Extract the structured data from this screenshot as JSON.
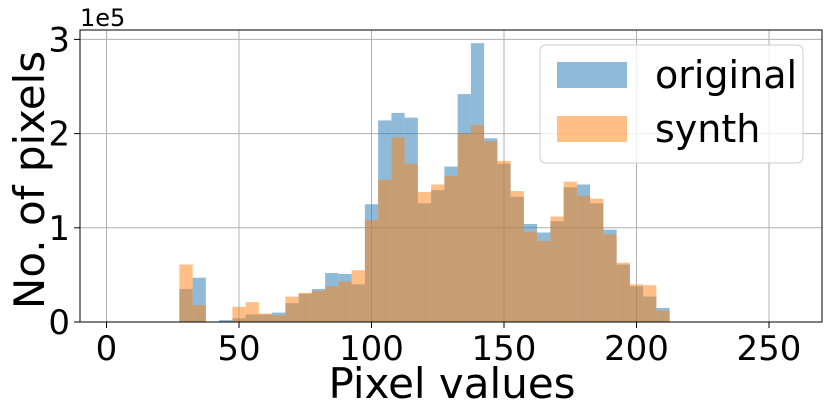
{
  "chart_data": {
    "type": "bar",
    "xlabel": "Pixel values",
    "ylabel": "No. of pixels",
    "y_offset_label": "1e5",
    "xlim": [
      -10,
      270
    ],
    "ylim": [
      0,
      3.1
    ],
    "y_unit_multiplier": 100000,
    "x_ticks": [
      0,
      50,
      100,
      150,
      200,
      250
    ],
    "y_ticks": [
      0,
      1,
      2,
      3
    ],
    "grid": true,
    "legend_position": "top-right",
    "bin_edges": [
      27.5,
      32.5,
      37.5,
      42.5,
      47.5,
      52.5,
      57.5,
      62.5,
      67.5,
      72.5,
      77.5,
      82.5,
      87.5,
      92.5,
      97.5,
      102.5,
      107.5,
      112.5,
      117.5,
      122.5,
      127.5,
      132.5,
      137.5,
      142.5,
      147.5,
      152.5,
      157.5,
      162.5,
      167.5,
      172.5,
      177.5,
      182.5,
      187.5,
      192.5,
      197.5,
      202.5,
      207.5,
      212.5,
      217.5
    ],
    "series": [
      {
        "name": "original",
        "color": "#1f77b4",
        "values": [
          0.35,
          0.47,
          0.0,
          0.02,
          0.04,
          0.08,
          0.08,
          0.1,
          0.2,
          0.3,
          0.35,
          0.52,
          0.51,
          0.4,
          1.25,
          2.14,
          2.22,
          2.17,
          1.26,
          1.4,
          1.65,
          2.42,
          2.96,
          1.95,
          1.68,
          1.33,
          1.04,
          0.95,
          1.07,
          1.43,
          1.46,
          1.26,
          0.98,
          0.61,
          0.38,
          0.27,
          0.15,
          0.0
        ]
      },
      {
        "name": "synth",
        "color": "#ff7f0e",
        "values": [
          0.61,
          0.18,
          0.0,
          0.0,
          0.16,
          0.21,
          0.09,
          0.07,
          0.27,
          0.31,
          0.33,
          0.38,
          0.43,
          0.55,
          1.08,
          1.51,
          1.96,
          1.68,
          1.38,
          1.46,
          1.55,
          2.0,
          2.09,
          1.92,
          1.71,
          1.39,
          0.96,
          0.86,
          1.12,
          1.49,
          1.34,
          1.31,
          0.93,
          0.63,
          0.4,
          0.39,
          0.12,
          0.0
        ]
      }
    ]
  }
}
